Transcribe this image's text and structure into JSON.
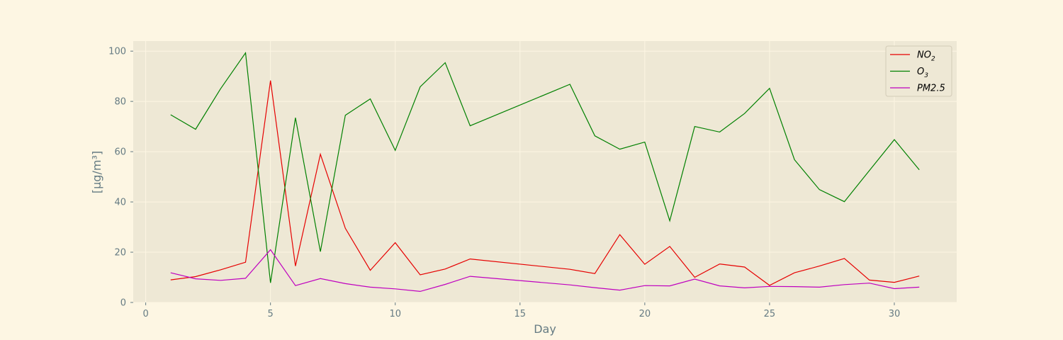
{
  "colors": {
    "figure_bg": "#fdf6e3",
    "plot_bg": "#eee8d5",
    "grid": "#fdf6e3",
    "text": "#657b83",
    "legend_bg": "#eee8d5",
    "legend_border": "#d3cbb7"
  },
  "chart_data": {
    "type": "line",
    "title": "",
    "xlabel": "Day",
    "ylabel": "[µg/m³]",
    "xlim": [
      -0.5,
      32.5
    ],
    "ylim": [
      0,
      104
    ],
    "xticks": [
      0,
      5,
      10,
      15,
      20,
      25,
      30
    ],
    "yticks": [
      0,
      20,
      40,
      60,
      80,
      100
    ],
    "grid": true,
    "legend_position": "top-right",
    "series": [
      {
        "name": "NO2",
        "legend_main": "NO",
        "legend_sub": "2",
        "color": "#e60000",
        "points": [
          [
            1,
            9
          ],
          [
            2,
            10.3
          ],
          [
            3,
            13
          ],
          [
            4,
            16
          ],
          [
            5,
            88.3
          ],
          [
            6,
            14.5
          ],
          [
            7,
            59
          ],
          [
            8,
            29.5
          ],
          [
            9,
            12.8
          ],
          [
            10,
            23.8
          ],
          [
            11,
            11
          ],
          [
            12,
            13.3
          ],
          [
            13,
            17.3
          ],
          [
            17,
            13.2
          ],
          [
            18,
            11.5
          ],
          [
            19,
            27
          ],
          [
            20,
            15.2
          ],
          [
            21,
            22.3
          ],
          [
            22,
            10
          ],
          [
            23,
            15.3
          ],
          [
            24,
            14.1
          ],
          [
            25,
            6.8
          ],
          [
            26,
            11.8
          ],
          [
            27,
            14.5
          ],
          [
            28,
            17.5
          ],
          [
            29,
            8.9
          ],
          [
            30,
            8
          ],
          [
            31,
            10.5
          ]
        ]
      },
      {
        "name": "O3",
        "legend_main": "O",
        "legend_sub": "3",
        "color": "#008000",
        "points": [
          [
            1,
            74.7
          ],
          [
            2,
            68.9
          ],
          [
            3,
            85
          ],
          [
            4,
            99.3
          ],
          [
            5,
            7.8
          ],
          [
            6,
            73.5
          ],
          [
            7,
            20.2
          ],
          [
            8,
            74.5
          ],
          [
            9,
            81
          ],
          [
            10,
            60.5
          ],
          [
            11,
            85.8
          ],
          [
            12,
            95.4
          ],
          [
            13,
            70.3
          ],
          [
            17,
            86.8
          ],
          [
            18,
            66.3
          ],
          [
            19,
            61
          ],
          [
            20,
            63.8
          ],
          [
            21,
            32.5
          ],
          [
            22,
            70
          ],
          [
            23,
            67.8
          ],
          [
            24,
            75.2
          ],
          [
            25,
            85.2
          ],
          [
            26,
            56.8
          ],
          [
            27,
            44.9
          ],
          [
            28,
            40.1
          ],
          [
            29,
            52.5
          ],
          [
            30,
            64.8
          ],
          [
            31,
            52.8
          ]
        ]
      },
      {
        "name": "PM2.5",
        "legend_main": "PM2.5",
        "legend_sub": "",
        "color": "#bf00bf",
        "points": [
          [
            1,
            11.8
          ],
          [
            2,
            9.4
          ],
          [
            3,
            8.8
          ],
          [
            4,
            9.6
          ],
          [
            5,
            21
          ],
          [
            6,
            6.7
          ],
          [
            7,
            9.5
          ],
          [
            8,
            7.5
          ],
          [
            9,
            6.1
          ],
          [
            10,
            5.4
          ],
          [
            11,
            4.4
          ],
          [
            12,
            7.2
          ],
          [
            13,
            10.4
          ],
          [
            17,
            7
          ],
          [
            18,
            5.9
          ],
          [
            19,
            4.9
          ],
          [
            20,
            6.7
          ],
          [
            21,
            6.6
          ],
          [
            22,
            9.3
          ],
          [
            23,
            6.6
          ],
          [
            24,
            5.8
          ],
          [
            25,
            6.4
          ],
          [
            26,
            6.3
          ],
          [
            27,
            6.1
          ],
          [
            28,
            7.1
          ],
          [
            29,
            7.7
          ],
          [
            30,
            5.5
          ],
          [
            31,
            6.1
          ]
        ]
      }
    ]
  }
}
